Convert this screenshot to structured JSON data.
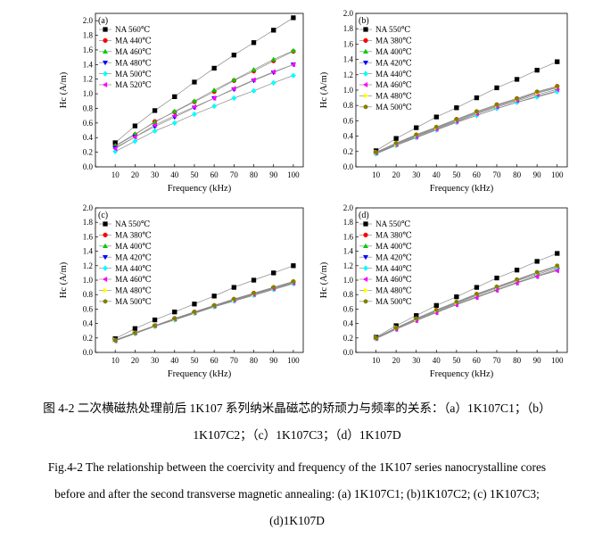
{
  "caption_cn": {
    "line1": "图 4-2  二次横磁热处理前后 1K107 系列纳米晶磁芯的矫顽力与频率的关系：（a）1K107C1；（b）",
    "line2": "1K107C2；（c）1K107C3；（d）1K107D"
  },
  "caption_en": {
    "line1": "Fig.4-2 The relationship between the coercivity and frequency of the 1K107 series nanocrystalline cores",
    "line2": "before and after the second transverse magnetic annealing: (a) 1K107C1; (b)1K107C2; (c) 1K107C3;",
    "line3": "(d)1K107D"
  },
  "styles": [
    {
      "color": "#000000",
      "marker": "square"
    },
    {
      "color": "#ff0000",
      "marker": "circle"
    },
    {
      "color": "#00cc00",
      "marker": "triangle-up"
    },
    {
      "color": "#0000ff",
      "marker": "triangle-down"
    },
    {
      "color": "#00ffff",
      "marker": "diamond"
    },
    {
      "color": "#ff00ff",
      "marker": "triangle-left"
    },
    {
      "color": "#ffff00",
      "marker": "triangle-right"
    },
    {
      "color": "#808000",
      "marker": "hexagon"
    }
  ],
  "chart_data": [
    {
      "type": "line",
      "panel_label": "(a)",
      "xlabel": "Frequency (kHz)",
      "ylabel": "Hc (A/m)",
      "xlim": [
        0,
        105
      ],
      "ylim": [
        0,
        2.1
      ],
      "xticks": [
        0,
        10,
        20,
        30,
        40,
        50,
        60,
        70,
        80,
        90,
        100
      ],
      "yticks": [
        0.0,
        0.2,
        0.4,
        0.6,
        0.8,
        1.0,
        1.2,
        1.4,
        1.6,
        1.8,
        2.0
      ],
      "legend_position": "top-left",
      "x": [
        10,
        20,
        30,
        40,
        50,
        60,
        70,
        80,
        90,
        100
      ],
      "series": [
        {
          "name": "NA 560℃",
          "style": 0,
          "values": [
            0.33,
            0.56,
            0.77,
            0.96,
            1.16,
            1.35,
            1.53,
            1.7,
            1.87,
            2.04
          ]
        },
        {
          "name": "MA 440℃",
          "style": 1,
          "values": [
            0.28,
            0.44,
            0.62,
            0.75,
            0.89,
            1.03,
            1.18,
            1.31,
            1.45,
            1.58
          ]
        },
        {
          "name": "MA 460℃",
          "style": 2,
          "values": [
            0.29,
            0.45,
            0.61,
            0.76,
            0.9,
            1.05,
            1.19,
            1.33,
            1.47,
            1.59
          ]
        },
        {
          "name": "MA 480℃",
          "style": 3,
          "values": [
            0.26,
            0.41,
            0.55,
            0.68,
            0.81,
            0.94,
            1.06,
            1.18,
            1.29,
            1.4
          ]
        },
        {
          "name": "MA 500℃",
          "style": 4,
          "values": [
            0.21,
            0.35,
            0.49,
            0.6,
            0.72,
            0.83,
            0.94,
            1.04,
            1.15,
            1.25
          ]
        },
        {
          "name": "MA 520℃",
          "style": 5,
          "values": [
            0.25,
            0.41,
            0.57,
            0.7,
            0.82,
            0.94,
            1.07,
            1.19,
            1.3,
            1.4
          ]
        }
      ]
    },
    {
      "type": "line",
      "panel_label": "(b)",
      "xlabel": "Frequency (kHz)",
      "ylabel": "Hc (A/m)",
      "xlim": [
        0,
        105
      ],
      "ylim": [
        0,
        2.0
      ],
      "xticks": [
        0,
        10,
        20,
        30,
        40,
        50,
        60,
        70,
        80,
        90,
        100
      ],
      "yticks": [
        0.0,
        0.2,
        0.4,
        0.6,
        0.8,
        1.0,
        1.2,
        1.4,
        1.6,
        1.8,
        2.0
      ],
      "legend_position": "top-left",
      "x": [
        10,
        20,
        30,
        40,
        50,
        60,
        70,
        80,
        90,
        100
      ],
      "series": [
        {
          "name": "NA 550℃",
          "style": 0,
          "values": [
            0.21,
            0.37,
            0.51,
            0.65,
            0.77,
            0.9,
            1.03,
            1.14,
            1.26,
            1.37
          ]
        },
        {
          "name": "MA 380℃",
          "style": 1,
          "values": [
            0.19,
            0.3,
            0.41,
            0.51,
            0.62,
            0.72,
            0.81,
            0.89,
            0.97,
            1.05
          ]
        },
        {
          "name": "MA 400℃",
          "style": 2,
          "values": [
            0.18,
            0.29,
            0.4,
            0.5,
            0.6,
            0.7,
            0.79,
            0.87,
            0.96,
            1.03
          ]
        },
        {
          "name": "MA 420℃",
          "style": 3,
          "values": [
            0.17,
            0.28,
            0.38,
            0.48,
            0.58,
            0.67,
            0.76,
            0.84,
            0.92,
            0.99
          ]
        },
        {
          "name": "MA 440℃",
          "style": 4,
          "values": [
            0.17,
            0.28,
            0.38,
            0.48,
            0.58,
            0.67,
            0.76,
            0.84,
            0.91,
            0.98
          ]
        },
        {
          "name": "MA 460℃",
          "style": 5,
          "values": [
            0.18,
            0.29,
            0.39,
            0.49,
            0.59,
            0.69,
            0.78,
            0.86,
            0.94,
            1.01
          ]
        },
        {
          "name": "MA 480℃",
          "style": 6,
          "values": [
            0.19,
            0.3,
            0.41,
            0.51,
            0.61,
            0.71,
            0.8,
            0.88,
            0.96,
            1.04
          ]
        },
        {
          "name": "MA 500℃",
          "style": 7,
          "values": [
            0.19,
            0.31,
            0.42,
            0.52,
            0.62,
            0.72,
            0.81,
            0.89,
            0.98,
            1.05
          ]
        }
      ]
    },
    {
      "type": "line",
      "panel_label": "(c)",
      "xlabel": "Frequency (kHz)",
      "ylabel": "Hc (A/m)",
      "xlim": [
        0,
        105
      ],
      "ylim": [
        0,
        2.0
      ],
      "xticks": [
        0,
        10,
        20,
        30,
        40,
        50,
        60,
        70,
        80,
        90,
        100
      ],
      "yticks": [
        0.0,
        0.2,
        0.4,
        0.6,
        0.8,
        1.0,
        1.2,
        1.4,
        1.6,
        1.8,
        2.0
      ],
      "legend_position": "top-left",
      "x": [
        10,
        20,
        30,
        40,
        50,
        60,
        70,
        80,
        90,
        100
      ],
      "series": [
        {
          "name": "NA 550℃",
          "style": 0,
          "values": [
            0.19,
            0.33,
            0.45,
            0.56,
            0.67,
            0.78,
            0.9,
            1.0,
            1.1,
            1.2
          ]
        },
        {
          "name": "MA 380℃",
          "style": 1,
          "values": [
            0.17,
            0.27,
            0.37,
            0.47,
            0.56,
            0.65,
            0.73,
            0.82,
            0.9,
            0.98
          ]
        },
        {
          "name": "MA 400℃",
          "style": 2,
          "values": [
            0.17,
            0.27,
            0.37,
            0.46,
            0.55,
            0.64,
            0.73,
            0.81,
            0.89,
            0.97
          ]
        },
        {
          "name": "MA 420℃",
          "style": 3,
          "values": [
            0.16,
            0.26,
            0.36,
            0.45,
            0.54,
            0.63,
            0.72,
            0.8,
            0.88,
            0.96
          ]
        },
        {
          "name": "MA 440℃",
          "style": 4,
          "values": [
            0.16,
            0.26,
            0.36,
            0.45,
            0.54,
            0.63,
            0.71,
            0.79,
            0.87,
            0.95
          ]
        },
        {
          "name": "MA 460℃",
          "style": 5,
          "values": [
            0.16,
            0.27,
            0.37,
            0.46,
            0.55,
            0.64,
            0.72,
            0.8,
            0.88,
            0.96
          ]
        },
        {
          "name": "MA 480℃",
          "style": 6,
          "values": [
            0.17,
            0.27,
            0.37,
            0.46,
            0.55,
            0.65,
            0.73,
            0.81,
            0.9,
            0.98
          ]
        },
        {
          "name": "MA 500℃",
          "style": 7,
          "values": [
            0.17,
            0.27,
            0.37,
            0.47,
            0.56,
            0.65,
            0.74,
            0.82,
            0.9,
            0.98
          ]
        }
      ]
    },
    {
      "type": "line",
      "panel_label": "(d)",
      "xlabel": "Frequency (kHz)",
      "ylabel": "Hc (A/m)",
      "xlim": [
        0,
        105
      ],
      "ylim": [
        0,
        2.0
      ],
      "xticks": [
        0,
        10,
        20,
        30,
        40,
        50,
        60,
        70,
        80,
        90,
        100
      ],
      "yticks": [
        0.0,
        0.2,
        0.4,
        0.6,
        0.8,
        1.0,
        1.2,
        1.4,
        1.6,
        1.8,
        2.0
      ],
      "legend_position": "top-left",
      "x": [
        10,
        20,
        30,
        40,
        50,
        60,
        70,
        80,
        90,
        100
      ],
      "series": [
        {
          "name": "NA 550℃",
          "style": 0,
          "values": [
            0.21,
            0.37,
            0.51,
            0.65,
            0.77,
            0.9,
            1.03,
            1.14,
            1.26,
            1.37
          ]
        },
        {
          "name": "MA 380℃",
          "style": 1,
          "values": [
            0.2,
            0.34,
            0.46,
            0.57,
            0.68,
            0.79,
            0.89,
            0.99,
            1.08,
            1.17
          ]
        },
        {
          "name": "MA 400℃",
          "style": 2,
          "values": [
            0.2,
            0.34,
            0.46,
            0.58,
            0.69,
            0.8,
            0.9,
            1.0,
            1.1,
            1.19
          ]
        },
        {
          "name": "MA 420℃",
          "style": 3,
          "values": [
            0.19,
            0.32,
            0.44,
            0.55,
            0.66,
            0.76,
            0.86,
            0.96,
            1.05,
            1.14
          ]
        },
        {
          "name": "MA 440℃",
          "style": 4,
          "values": [
            0.19,
            0.33,
            0.45,
            0.56,
            0.67,
            0.77,
            0.87,
            0.97,
            1.06,
            1.15
          ]
        },
        {
          "name": "MA 460℃",
          "style": 5,
          "values": [
            0.19,
            0.32,
            0.44,
            0.55,
            0.66,
            0.76,
            0.86,
            0.96,
            1.05,
            1.13
          ]
        },
        {
          "name": "MA 480℃",
          "style": 6,
          "values": [
            0.2,
            0.34,
            0.46,
            0.58,
            0.69,
            0.8,
            0.9,
            1.0,
            1.1,
            1.19
          ]
        },
        {
          "name": "MA 500℃",
          "style": 7,
          "values": [
            0.2,
            0.34,
            0.47,
            0.59,
            0.7,
            0.81,
            0.91,
            1.01,
            1.11,
            1.2
          ]
        }
      ]
    }
  ]
}
